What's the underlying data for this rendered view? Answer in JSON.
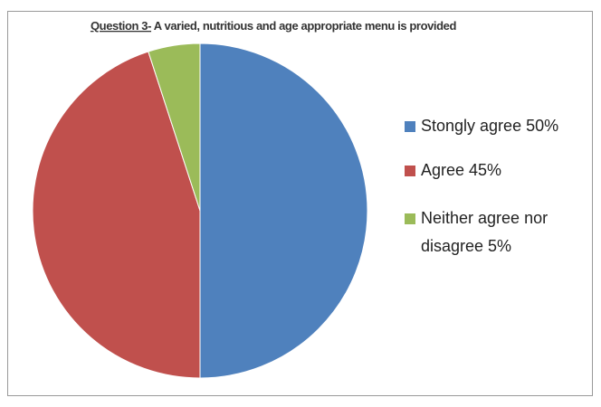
{
  "chart_data": {
    "type": "pie",
    "title": [
      "Question 3-",
      " A varied, nutritious and age appropriate menu is provided"
    ],
    "categories": [
      "Stongly agree 50%",
      "Agree 45%",
      "Neither agree nor disagree 5%"
    ],
    "values": [
      50,
      45,
      5
    ],
    "colors": [
      "#4f81bd",
      "#c0504d",
      "#9bbb59"
    ],
    "legend": "right"
  }
}
